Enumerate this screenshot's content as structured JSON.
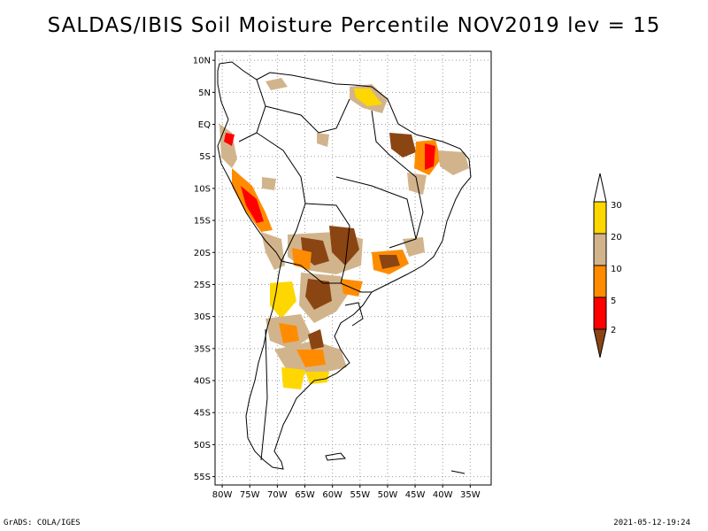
{
  "title": "SALDAS/IBIS Soil Moisture Percentile NOV2019 lev = 15",
  "footer": {
    "left": "GrADS: COLA/IGES",
    "right": "2021-05-12-19:24"
  },
  "map": {
    "lat_labels": [
      "10N",
      "5N",
      "EQ",
      "5S",
      "10S",
      "15S",
      "20S",
      "25S",
      "30S",
      "35S",
      "40S",
      "45S",
      "50S",
      "55S"
    ],
    "lon_labels": [
      "80W",
      "75W",
      "70W",
      "65W",
      "60W",
      "55W",
      "50W",
      "45W",
      "40W",
      "35W"
    ],
    "lat_values": [
      10,
      5,
      0,
      -5,
      -10,
      -15,
      -20,
      -25,
      -30,
      -35,
      -40,
      -45,
      -50,
      -55
    ],
    "lon_values": [
      -80,
      -75,
      -70,
      -65,
      -60,
      -55,
      -50,
      -45,
      -40,
      -35
    ],
    "grid": true,
    "grid_style": "dotted"
  },
  "colorbar": {
    "labels": [
      "30",
      "20",
      "10",
      "5",
      "2"
    ],
    "colors": {
      "above_30": "#ffffff",
      "20_30": "#ffd700",
      "10_20": "#d2b48c",
      "5_10": "#ff8c00",
      "2_5": "#ff0000",
      "below_2": "#8b4513"
    }
  }
}
